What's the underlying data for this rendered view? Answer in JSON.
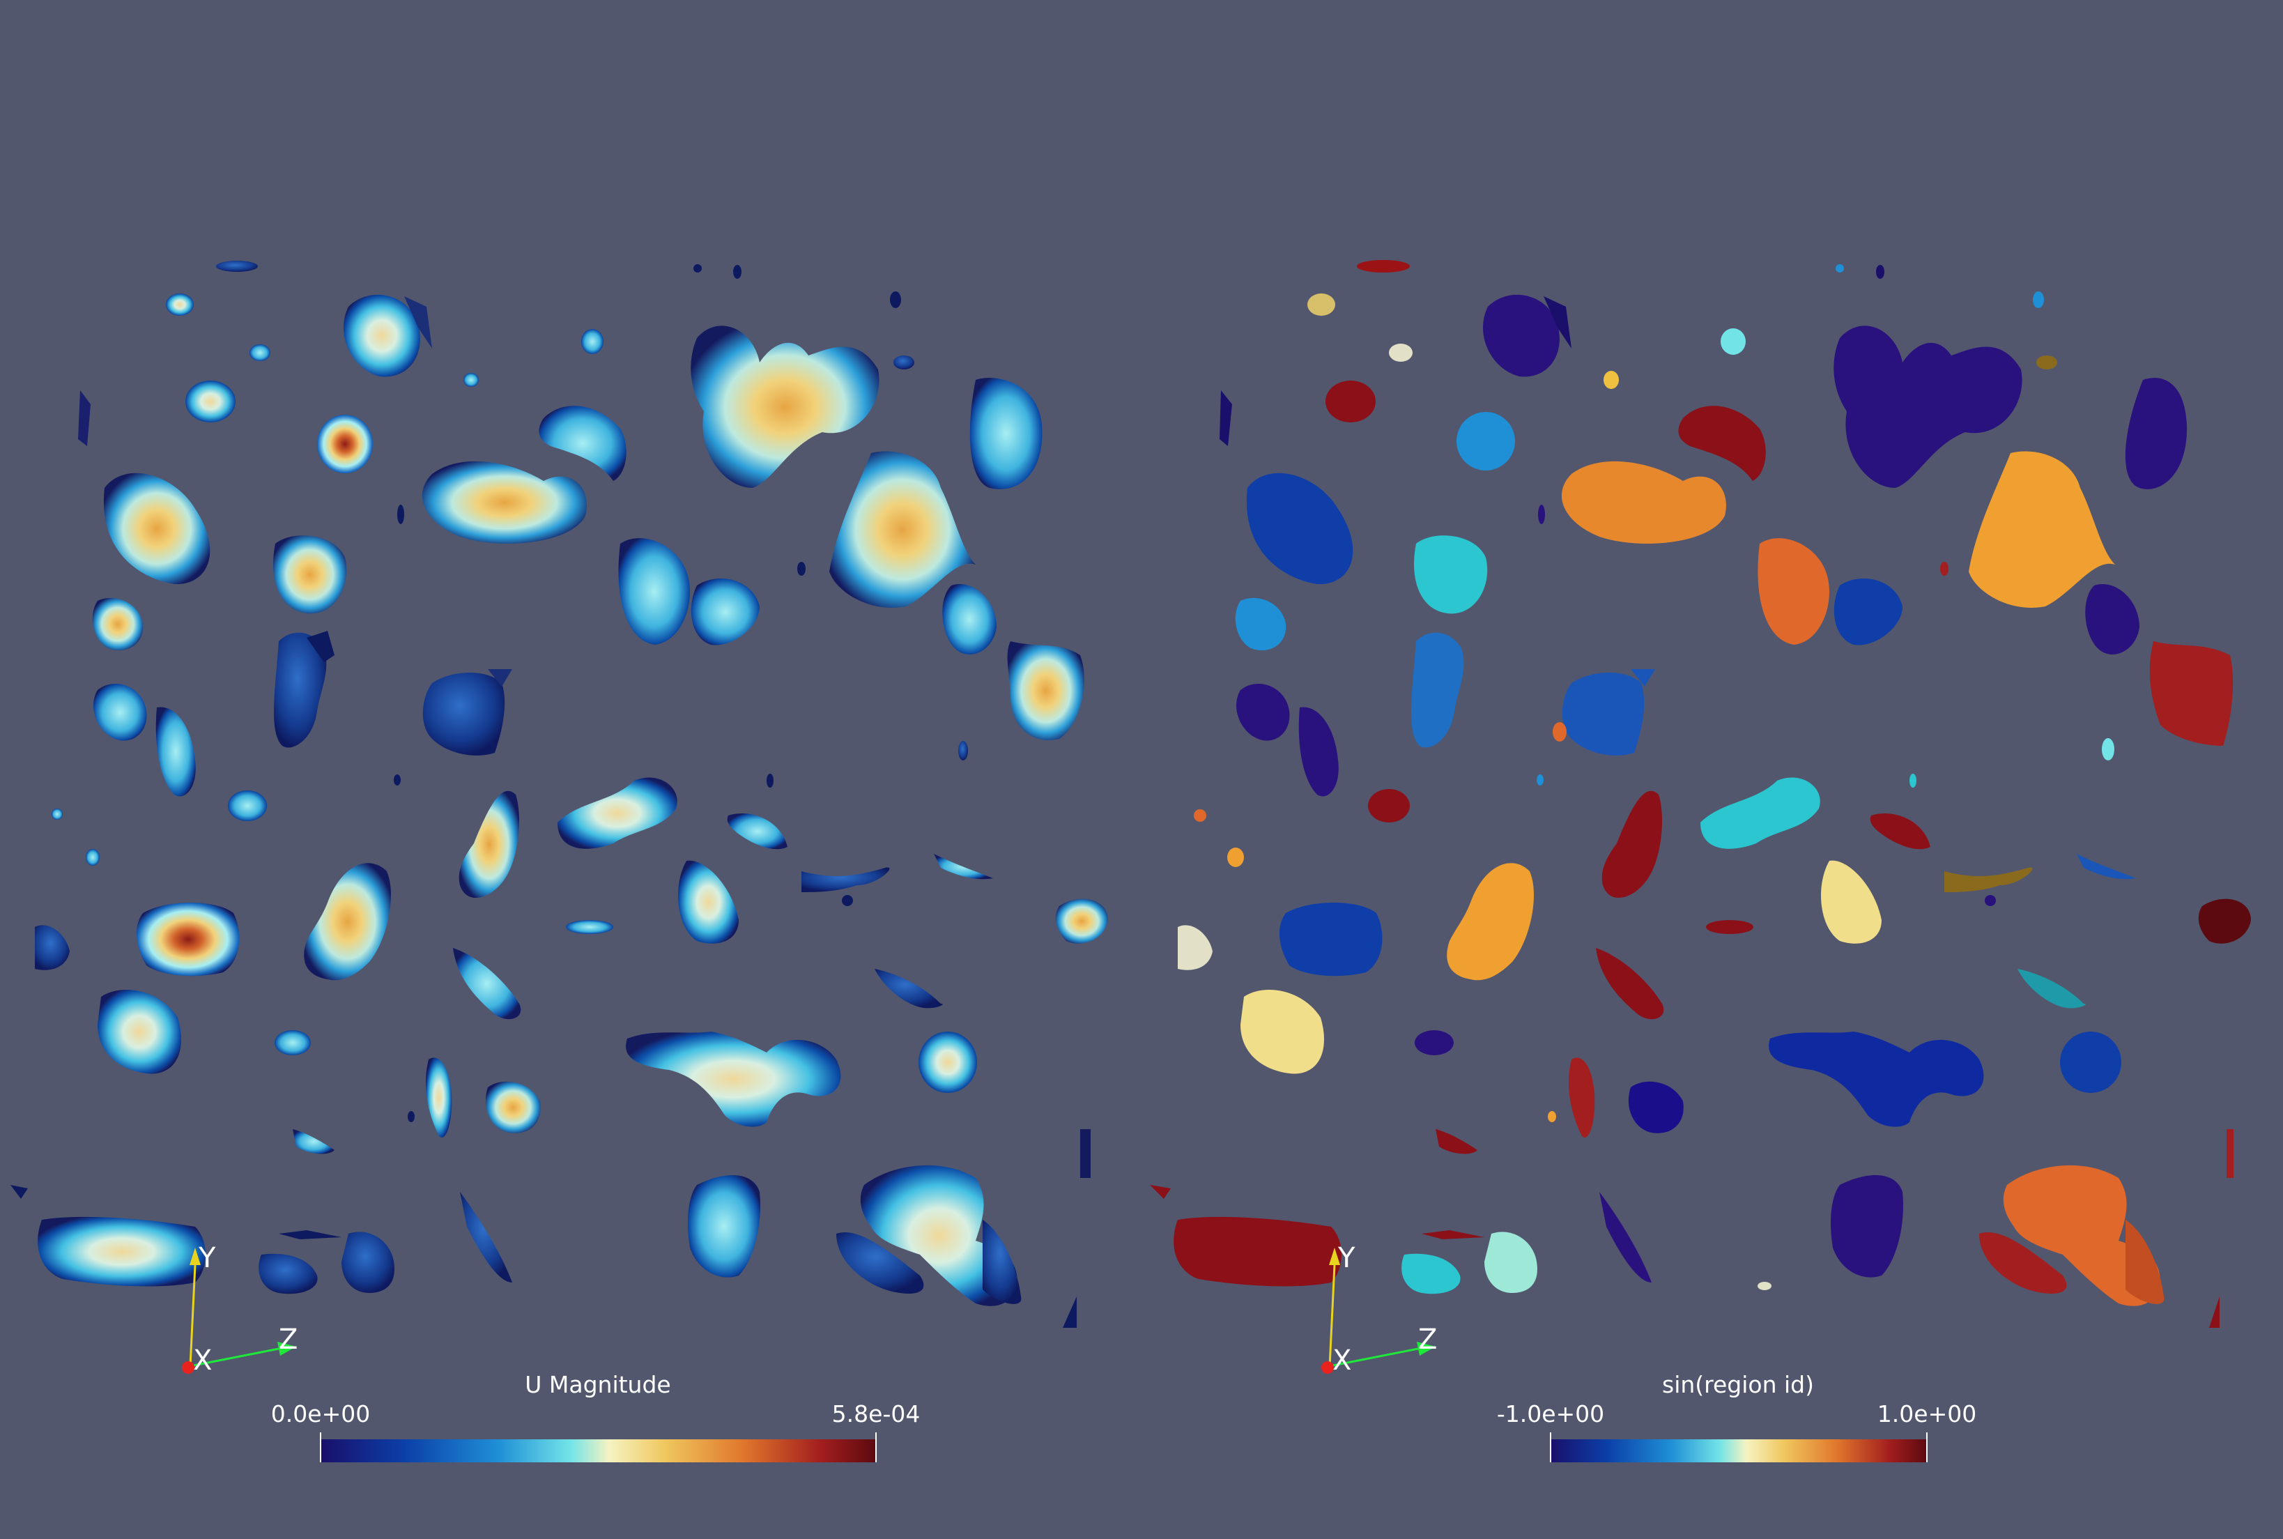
{
  "views": [
    {
      "colorbar": {
        "title": "U Magnitude",
        "min_label": "0.0e+00",
        "max_label": "5.8e-04",
        "colormap": [
          "#1a0f6b",
          "#0b3fa8",
          "#1f8fd6",
          "#72e4e7",
          "#f5f3c2",
          "#f0c75e",
          "#e0772c",
          "#a31e1e",
          "#5c0a10"
        ]
      },
      "axes": {
        "x": "X",
        "y": "Y",
        "z": "Z"
      }
    },
    {
      "colorbar": {
        "title": "sin(region id)",
        "min_label": "-1.0e+00",
        "max_label": "1.0e+00",
        "colormap": [
          "#1a0f6b",
          "#0b3fa8",
          "#1f8fd6",
          "#72e4e7",
          "#f5f3c2",
          "#f0c75e",
          "#e0772c",
          "#a31e1e",
          "#5c0a10"
        ]
      },
      "axes": {
        "x": "X",
        "y": "Y",
        "z": "Z"
      }
    }
  ],
  "colors": {
    "background": "#52576e",
    "axis_x": "#e8231e",
    "axis_y": "#e8d41e",
    "axis_z": "#1ee83a"
  }
}
